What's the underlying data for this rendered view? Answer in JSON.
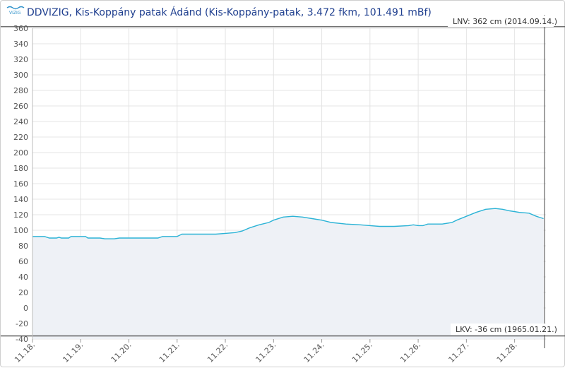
{
  "header": {
    "logo_text": "VIZIG",
    "title": "DDVIZIG, Kis-Koppány patak Ádánd (Kis-Koppány-patak, 3.472 fkm, 101.491 mBf)"
  },
  "colors": {
    "line": "#2bb3d6",
    "area": "#eef1f6",
    "grid": "#e4e4e4",
    "ref_line": "#444444",
    "title": "#1f3f8f"
  },
  "chart_data": {
    "type": "area",
    "title": "DDVIZIG, Kis-Koppány patak Ádánd (Kis-Koppány-patak, 3.472 fkm, 101.491 mBf)",
    "xlabel": "",
    "ylabel": "",
    "ylim": [
      -40,
      360
    ],
    "yticks": [
      360,
      340,
      320,
      300,
      280,
      260,
      240,
      220,
      200,
      180,
      160,
      140,
      120,
      100,
      80,
      60,
      40,
      20,
      0,
      -20,
      -40
    ],
    "xlim": [
      0,
      10.65
    ],
    "xticks": [
      {
        "x": 0,
        "label": "11.18."
      },
      {
        "x": 1,
        "label": "11.19."
      },
      {
        "x": 2,
        "label": "11.20."
      },
      {
        "x": 3,
        "label": "11.21."
      },
      {
        "x": 4,
        "label": "11.22."
      },
      {
        "x": 5,
        "label": "11.23."
      },
      {
        "x": 6,
        "label": "11.24."
      },
      {
        "x": 7,
        "label": "11.25."
      },
      {
        "x": 8,
        "label": "11.26."
      },
      {
        "x": 9,
        "label": "11.27."
      },
      {
        "x": 10,
        "label": "11.28."
      }
    ],
    "grid": true,
    "series": [
      {
        "points": [
          [
            0,
            92
          ],
          [
            0.25,
            92
          ],
          [
            0.35,
            90
          ],
          [
            0.5,
            90
          ],
          [
            0.55,
            91
          ],
          [
            0.6,
            90
          ],
          [
            0.75,
            90
          ],
          [
            0.8,
            92
          ],
          [
            1.0,
            92
          ],
          [
            1.1,
            92
          ],
          [
            1.15,
            90
          ],
          [
            1.4,
            90
          ],
          [
            1.5,
            89
          ],
          [
            1.7,
            89
          ],
          [
            1.8,
            90
          ],
          [
            2.0,
            90
          ],
          [
            2.6,
            90
          ],
          [
            2.7,
            92
          ],
          [
            3.0,
            92
          ],
          [
            3.1,
            95
          ],
          [
            3.5,
            95
          ],
          [
            3.8,
            95
          ],
          [
            4.0,
            96
          ],
          [
            4.2,
            97
          ],
          [
            4.35,
            99
          ],
          [
            4.5,
            103
          ],
          [
            4.7,
            107
          ],
          [
            4.9,
            110
          ],
          [
            5.0,
            113
          ],
          [
            5.2,
            117
          ],
          [
            5.4,
            118
          ],
          [
            5.6,
            117
          ],
          [
            5.8,
            115
          ],
          [
            6.0,
            113
          ],
          [
            6.2,
            110
          ],
          [
            6.5,
            108
          ],
          [
            6.8,
            107
          ],
          [
            7.0,
            106
          ],
          [
            7.2,
            105
          ],
          [
            7.5,
            105
          ],
          [
            7.8,
            106
          ],
          [
            7.9,
            107
          ],
          [
            8.0,
            106
          ],
          [
            8.1,
            106
          ],
          [
            8.2,
            108
          ],
          [
            8.5,
            108
          ],
          [
            8.7,
            110
          ],
          [
            8.8,
            113
          ],
          [
            9.0,
            118
          ],
          [
            9.2,
            123
          ],
          [
            9.4,
            127
          ],
          [
            9.6,
            128
          ],
          [
            9.75,
            127
          ],
          [
            9.9,
            125
          ],
          [
            10.1,
            123
          ],
          [
            10.3,
            122
          ],
          [
            10.45,
            118
          ],
          [
            10.6,
            115
          ]
        ]
      }
    ],
    "annotations": [
      {
        "label": "LNV: 362 cm (2014.09.14.)",
        "value": 362
      },
      {
        "label": "LKV: -36 cm (1965.01.21.)",
        "value": -36
      }
    ]
  }
}
